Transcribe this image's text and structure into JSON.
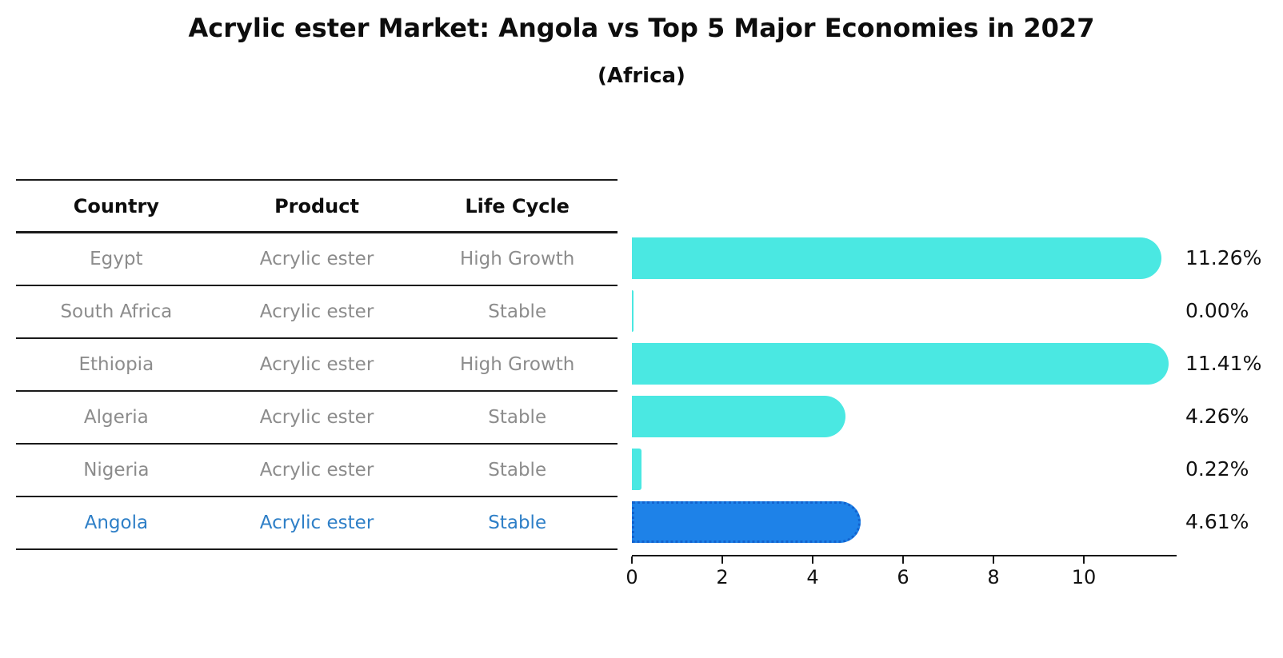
{
  "title": "Acrylic ester Market: Angola vs Top 5 Major Economies in 2027",
  "subtitle": "(Africa)",
  "table": {
    "headers": [
      "Country",
      "Product",
      "Life Cycle"
    ],
    "rows": [
      {
        "country": "Egypt",
        "product": "Acrylic ester",
        "life_cycle": "High Growth",
        "highlight": false
      },
      {
        "country": "South Africa",
        "product": "Acrylic ester",
        "life_cycle": "Stable",
        "highlight": false
      },
      {
        "country": "Ethiopia",
        "product": "Acrylic ester",
        "life_cycle": "High Growth",
        "highlight": false
      },
      {
        "country": "Algeria",
        "product": "Acrylic ester",
        "life_cycle": "Stable",
        "highlight": false
      },
      {
        "country": "Nigeria",
        "product": "Acrylic ester",
        "life_cycle": "Stable",
        "highlight": false
      },
      {
        "country": "Angola",
        "product": "Acrylic ester",
        "life_cycle": "Stable",
        "highlight": true
      }
    ]
  },
  "chart_data": {
    "type": "bar",
    "orientation": "horizontal",
    "title": "Acrylic ester Market: Angola vs Top 5 Major Economies in 2027",
    "subtitle": "(Africa)",
    "categories": [
      "Egypt",
      "South Africa",
      "Ethiopia",
      "Algeria",
      "Nigeria",
      "Angola"
    ],
    "values": [
      11.26,
      0.0,
      11.41,
      4.26,
      0.22,
      4.61
    ],
    "value_labels": [
      "11.26%",
      "0.00%",
      "11.41%",
      "4.26%",
      "0.22%",
      "4.61%"
    ],
    "xlabel": "",
    "ylabel": "",
    "xlim": [
      0,
      12
    ],
    "xticks": [
      0,
      2,
      4,
      6,
      8,
      10
    ],
    "grid": false,
    "legend": false,
    "highlight_index": 5,
    "bar_color": "#4AE8E2",
    "highlight_bar_color": "#1E82E8",
    "highlight_border_color": "#1262CE",
    "highlight_text_color": "#2E7FC7"
  }
}
